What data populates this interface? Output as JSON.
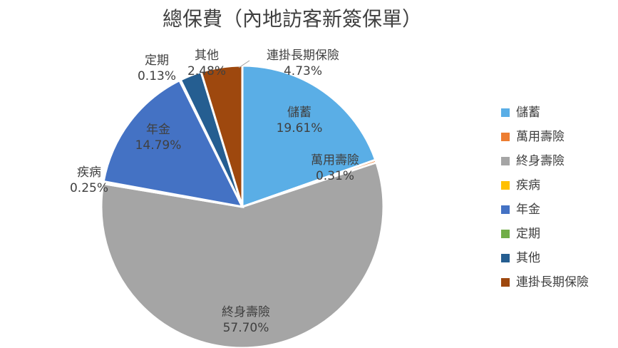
{
  "chart_data": {
    "type": "pie",
    "title": "總保費（內地訪客新簽保單）",
    "categories": [
      "儲蓄",
      "萬用壽險",
      "終身壽險",
      "疾病",
      "年金",
      "定期",
      "其他",
      "連掛長期保險"
    ],
    "values": [
      19.61,
      0.31,
      57.7,
      0.25,
      14.79,
      0.13,
      2.48,
      4.73
    ],
    "value_labels": [
      "19.61%",
      "0.31%",
      "57.70%",
      "0.25%",
      "14.79%",
      "0.13%",
      "2.48%",
      "4.73%"
    ],
    "colors": [
      "#5aaee6",
      "#ed7d31",
      "#a5a5a5",
      "#ffc000",
      "#4472c4",
      "#70ad47",
      "#255e91",
      "#9e480e"
    ],
    "legend": "right"
  }
}
